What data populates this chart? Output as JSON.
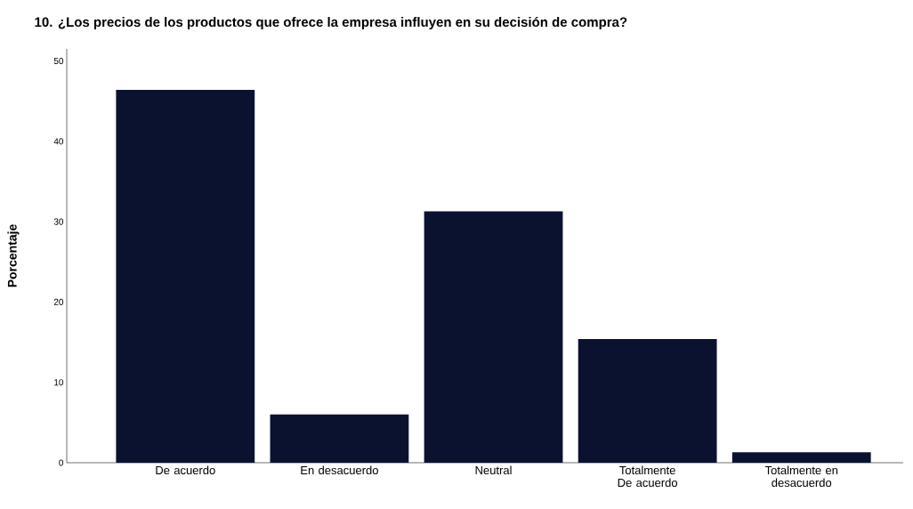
{
  "chart_data": {
    "type": "bar",
    "title": "10. ¿Los precios de los productos que ofrece la empresa influyen en su decisión de compra?",
    "ylabel": "Porcentaje",
    "categories": [
      "De acuerdo",
      "En desacuerdo",
      "Neutral",
      "Totalmente De acuerdo",
      "Totalmente en desacuerdo"
    ],
    "values": [
      46.4,
      6.0,
      31.3,
      15.4,
      1.3
    ],
    "color": "#0b1230",
    "ylim": [
      0,
      51.5
    ],
    "yticks": [
      0,
      10,
      20,
      30,
      40,
      50
    ],
    "grid": false
  }
}
